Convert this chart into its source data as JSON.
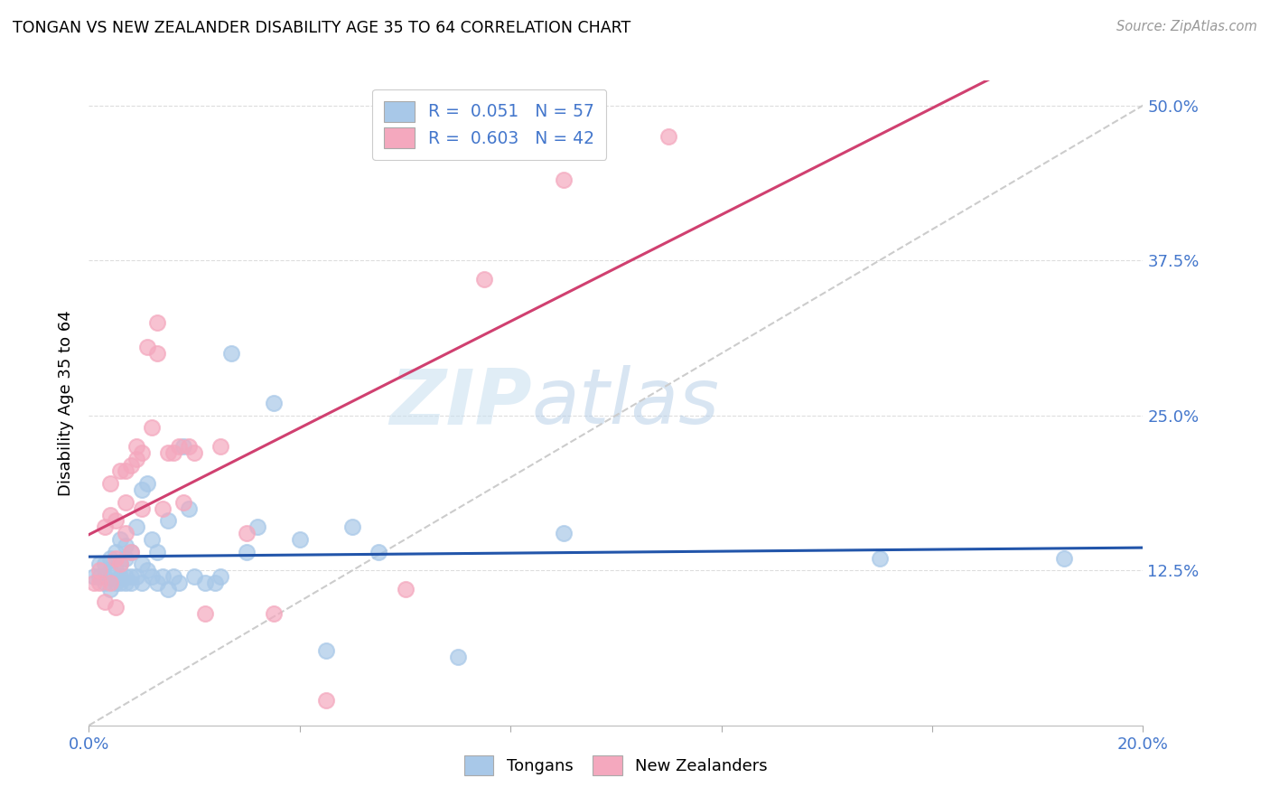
{
  "title": "TONGAN VS NEW ZEALANDER DISABILITY AGE 35 TO 64 CORRELATION CHART",
  "source": "Source: ZipAtlas.com",
  "ylabel_label": "Disability Age 35 to 64",
  "xlim": [
    0.0,
    0.2
  ],
  "ylim": [
    0.0,
    0.52
  ],
  "watermark_zip": "ZIP",
  "watermark_atlas": "atlas",
  "legend_line1": "R =  0.051   N = 57",
  "legend_line2": "R =  0.603   N = 42",
  "blue_color": "#a8c8e8",
  "pink_color": "#f4a8be",
  "blue_line_color": "#2255aa",
  "pink_line_color": "#d04070",
  "dashed_line_color": "#cccccc",
  "tick_color": "#4477cc",
  "tongans_x": [
    0.001,
    0.002,
    0.002,
    0.003,
    0.003,
    0.003,
    0.004,
    0.004,
    0.004,
    0.005,
    0.005,
    0.005,
    0.006,
    0.006,
    0.006,
    0.006,
    0.007,
    0.007,
    0.007,
    0.007,
    0.008,
    0.008,
    0.008,
    0.009,
    0.009,
    0.01,
    0.01,
    0.01,
    0.011,
    0.011,
    0.012,
    0.012,
    0.013,
    0.013,
    0.014,
    0.015,
    0.015,
    0.016,
    0.017,
    0.018,
    0.019,
    0.02,
    0.022,
    0.024,
    0.025,
    0.027,
    0.03,
    0.032,
    0.035,
    0.04,
    0.045,
    0.05,
    0.055,
    0.07,
    0.09,
    0.15,
    0.185
  ],
  "tongans_y": [
    0.12,
    0.12,
    0.13,
    0.115,
    0.12,
    0.13,
    0.11,
    0.125,
    0.135,
    0.115,
    0.125,
    0.14,
    0.115,
    0.12,
    0.13,
    0.15,
    0.115,
    0.12,
    0.135,
    0.145,
    0.115,
    0.12,
    0.14,
    0.12,
    0.16,
    0.115,
    0.13,
    0.19,
    0.125,
    0.195,
    0.12,
    0.15,
    0.115,
    0.14,
    0.12,
    0.11,
    0.165,
    0.12,
    0.115,
    0.225,
    0.175,
    0.12,
    0.115,
    0.115,
    0.12,
    0.3,
    0.14,
    0.16,
    0.26,
    0.15,
    0.06,
    0.16,
    0.14,
    0.055,
    0.155,
    0.135,
    0.135
  ],
  "nz_x": [
    0.001,
    0.002,
    0.002,
    0.003,
    0.003,
    0.004,
    0.004,
    0.004,
    0.005,
    0.005,
    0.005,
    0.006,
    0.006,
    0.007,
    0.007,
    0.007,
    0.008,
    0.008,
    0.009,
    0.009,
    0.01,
    0.01,
    0.011,
    0.012,
    0.013,
    0.013,
    0.014,
    0.015,
    0.016,
    0.017,
    0.018,
    0.019,
    0.02,
    0.022,
    0.025,
    0.03,
    0.035,
    0.045,
    0.06,
    0.075,
    0.09,
    0.11
  ],
  "nz_y": [
    0.115,
    0.115,
    0.125,
    0.1,
    0.16,
    0.115,
    0.17,
    0.195,
    0.095,
    0.135,
    0.165,
    0.13,
    0.205,
    0.155,
    0.18,
    0.205,
    0.14,
    0.21,
    0.215,
    0.225,
    0.175,
    0.22,
    0.305,
    0.24,
    0.3,
    0.325,
    0.175,
    0.22,
    0.22,
    0.225,
    0.18,
    0.225,
    0.22,
    0.09,
    0.225,
    0.155,
    0.09,
    0.02,
    0.11,
    0.36,
    0.44,
    0.475
  ]
}
